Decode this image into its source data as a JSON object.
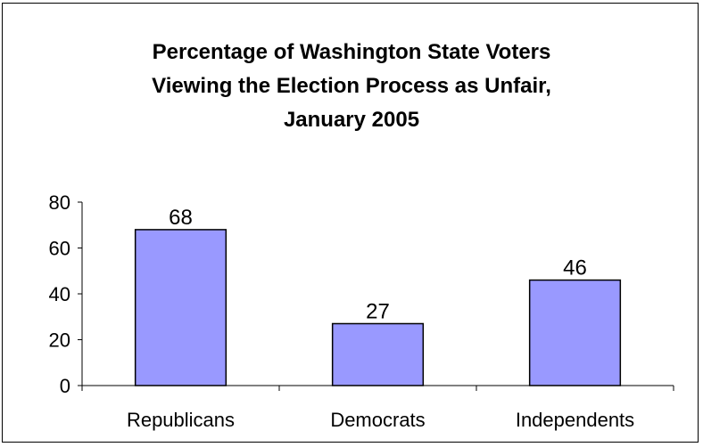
{
  "chart_data": {
    "type": "bar",
    "title_lines": [
      "Percentage of Washington State Voters",
      "Viewing the Election Process as Unfair,",
      "January 2005"
    ],
    "categories": [
      "Republicans",
      "Democrats",
      "Independents"
    ],
    "values": [
      68,
      27,
      46
    ],
    "data_labels": [
      "68",
      "27",
      "46"
    ],
    "y_ticks": [
      "0",
      "20",
      "40",
      "60",
      "80"
    ],
    "ylim": [
      0,
      80
    ],
    "xlabel": "",
    "ylabel": "",
    "grid": false,
    "legend": "none",
    "bar_color": "#9999ff",
    "bar_edge_color": "#000000"
  }
}
